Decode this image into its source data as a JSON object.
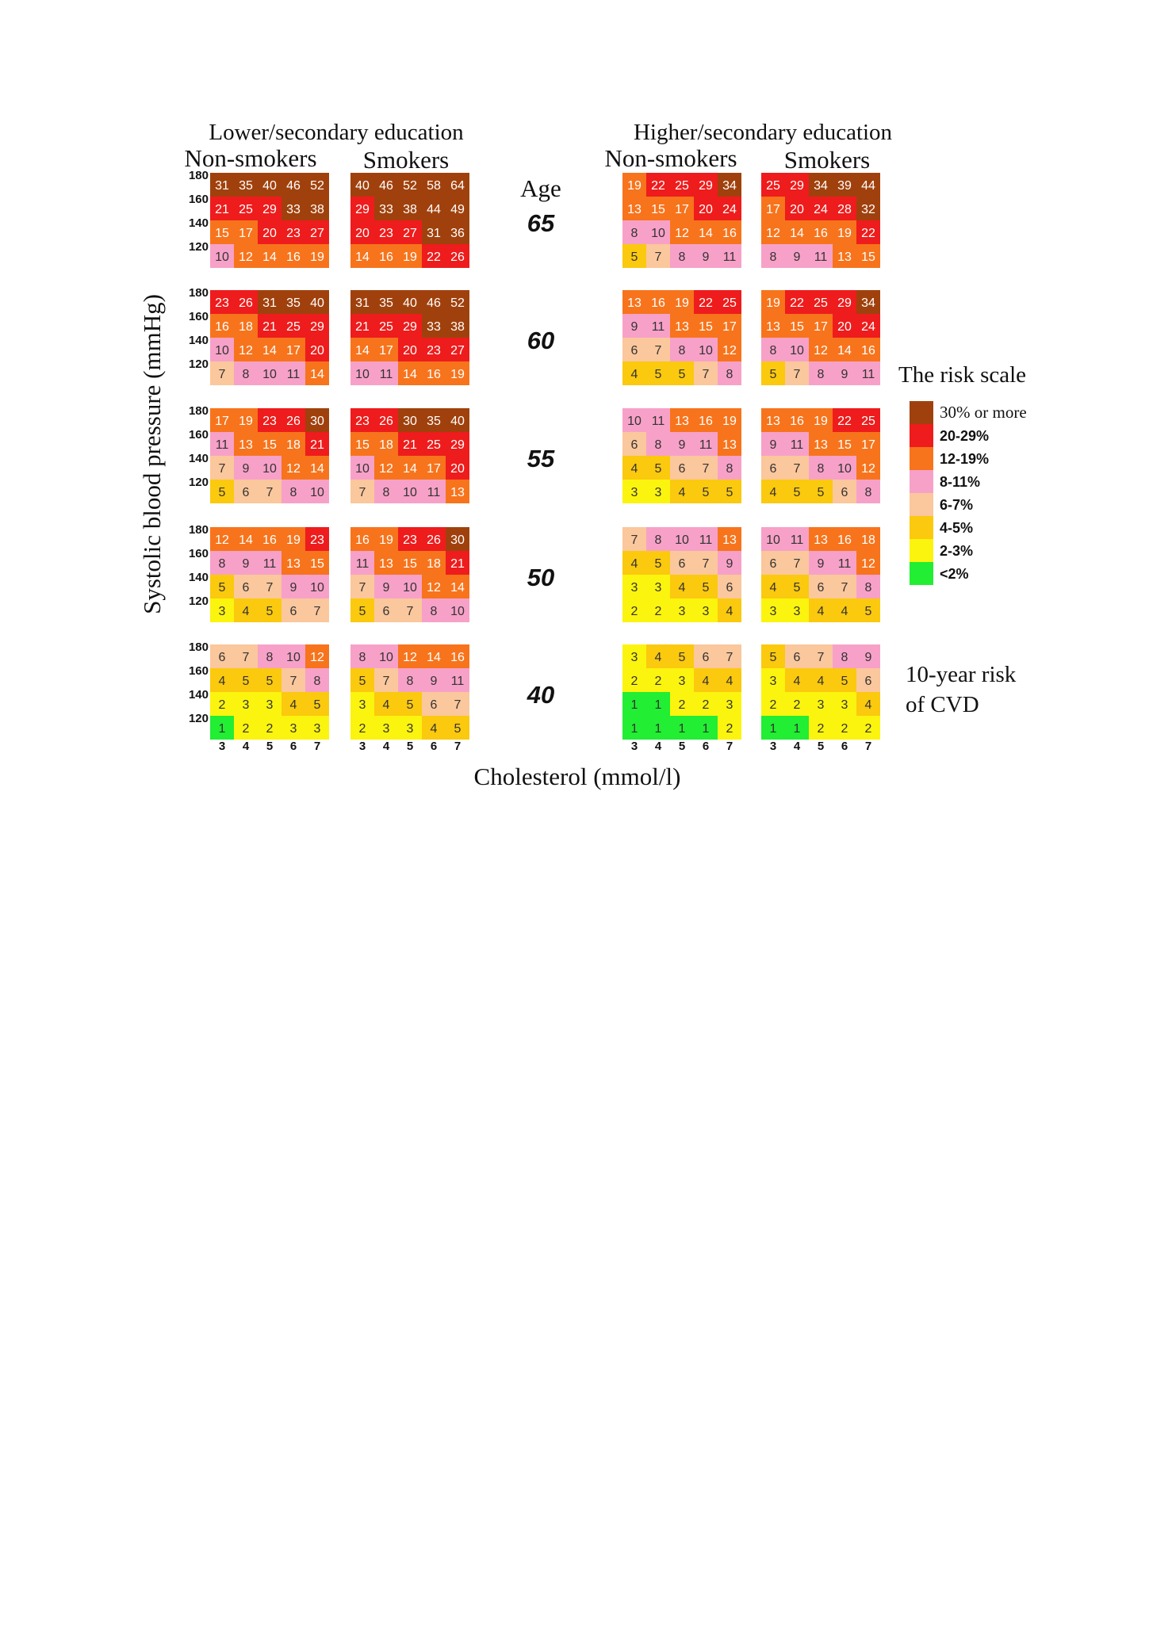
{
  "chart_data": {
    "type": "heatmap",
    "titles": {
      "lower_group": "Lower/secondary education",
      "higher_group": "Higher/secondary education",
      "non_smokers": "Non-smokers",
      "smokers": "Smokers",
      "age_label": "Age",
      "ylabel": "Systolic blood pressure (mmHg)",
      "xlabel": "Cholesterol (mmol/l)",
      "risk_scale_title": "The risk scale",
      "risk_note_line1": "10-year risk",
      "risk_note_line2": "of CVD"
    },
    "ages": [
      "65",
      "60",
      "55",
      "50",
      "40"
    ],
    "sbp_levels": [
      "180",
      "160",
      "140",
      "120"
    ],
    "cholesterol_levels": [
      "3",
      "4",
      "5",
      "6",
      "7"
    ],
    "legend": [
      {
        "label": "30% or more",
        "color": "#a0410d"
      },
      {
        "label": "20-29%",
        "color": "#ee1c1c"
      },
      {
        "label": "12-19%",
        "color": "#f7741c"
      },
      {
        "label": "8-11%",
        "color": "#f7a1c8"
      },
      {
        "label": "6-7%",
        "color": "#fbc79c"
      },
      {
        "label": "4-5%",
        "color": "#fbc90e"
      },
      {
        "label": "2-3%",
        "color": "#fbf40e"
      },
      {
        "label": "<2%",
        "color": "#22ee33"
      }
    ],
    "panels": [
      {
        "group": "lower",
        "smoking": "non-smokers",
        "age": "65",
        "values": [
          [
            31,
            35,
            40,
            46,
            52
          ],
          [
            21,
            25,
            29,
            33,
            38
          ],
          [
            15,
            17,
            20,
            23,
            27
          ],
          [
            10,
            12,
            14,
            16,
            19
          ]
        ]
      },
      {
        "group": "lower",
        "smoking": "smokers",
        "age": "65",
        "values": [
          [
            40,
            46,
            52,
            58,
            64
          ],
          [
            29,
            33,
            38,
            44,
            49
          ],
          [
            20,
            23,
            27,
            31,
            36
          ],
          [
            14,
            16,
            19,
            22,
            26
          ]
        ]
      },
      {
        "group": "higher",
        "smoking": "non-smokers",
        "age": "65",
        "values": [
          [
            19,
            22,
            25,
            29,
            34
          ],
          [
            13,
            15,
            17,
            20,
            24
          ],
          [
            8,
            10,
            12,
            14,
            16
          ],
          [
            5,
            7,
            8,
            9,
            11
          ]
        ]
      },
      {
        "group": "higher",
        "smoking": "smokers",
        "age": "65",
        "values": [
          [
            25,
            29,
            34,
            39,
            44
          ],
          [
            17,
            20,
            24,
            28,
            32
          ],
          [
            12,
            14,
            16,
            19,
            22
          ],
          [
            8,
            9,
            11,
            13,
            15
          ]
        ]
      },
      {
        "group": "lower",
        "smoking": "non-smokers",
        "age": "60",
        "values": [
          [
            23,
            26,
            31,
            35,
            40
          ],
          [
            16,
            18,
            21,
            25,
            29
          ],
          [
            10,
            12,
            14,
            17,
            20
          ],
          [
            7,
            8,
            10,
            11,
            14
          ]
        ]
      },
      {
        "group": "lower",
        "smoking": "smokers",
        "age": "60",
        "values": [
          [
            31,
            35,
            40,
            46,
            52
          ],
          [
            21,
            25,
            29,
            33,
            38
          ],
          [
            14,
            17,
            20,
            23,
            27
          ],
          [
            10,
            11,
            14,
            16,
            19
          ]
        ]
      },
      {
        "group": "higher",
        "smoking": "non-smokers",
        "age": "60",
        "values": [
          [
            13,
            16,
            19,
            22,
            25
          ],
          [
            9,
            11,
            13,
            15,
            17
          ],
          [
            6,
            7,
            8,
            10,
            12
          ],
          [
            4,
            5,
            5,
            7,
            8
          ]
        ]
      },
      {
        "group": "higher",
        "smoking": "smokers",
        "age": "60",
        "values": [
          [
            19,
            22,
            25,
            29,
            34
          ],
          [
            13,
            15,
            17,
            20,
            24
          ],
          [
            8,
            10,
            12,
            14,
            16
          ],
          [
            5,
            7,
            8,
            9,
            11
          ]
        ]
      },
      {
        "group": "lower",
        "smoking": "non-smokers",
        "age": "55",
        "values": [
          [
            17,
            19,
            23,
            26,
            30
          ],
          [
            11,
            13,
            15,
            18,
            21
          ],
          [
            7,
            9,
            10,
            12,
            14
          ],
          [
            5,
            6,
            7,
            8,
            10
          ]
        ]
      },
      {
        "group": "lower",
        "smoking": "smokers",
        "age": "55",
        "values": [
          [
            23,
            26,
            30,
            35,
            40
          ],
          [
            15,
            18,
            21,
            25,
            29
          ],
          [
            10,
            12,
            14,
            17,
            20
          ],
          [
            7,
            8,
            10,
            11,
            13
          ]
        ]
      },
      {
        "group": "higher",
        "smoking": "non-smokers",
        "age": "55",
        "values": [
          [
            10,
            11,
            13,
            16,
            19
          ],
          [
            6,
            8,
            9,
            11,
            13
          ],
          [
            4,
            5,
            6,
            7,
            8
          ],
          [
            3,
            3,
            4,
            5,
            5
          ]
        ]
      },
      {
        "group": "higher",
        "smoking": "smokers",
        "age": "55",
        "values": [
          [
            13,
            16,
            19,
            22,
            25
          ],
          [
            9,
            11,
            13,
            15,
            17
          ],
          [
            6,
            7,
            8,
            10,
            12
          ],
          [
            4,
            5,
            5,
            6,
            8
          ]
        ]
      },
      {
        "group": "lower",
        "smoking": "non-smokers",
        "age": "50",
        "values": [
          [
            12,
            14,
            16,
            19,
            23
          ],
          [
            8,
            9,
            11,
            13,
            15
          ],
          [
            5,
            6,
            7,
            9,
            10
          ],
          [
            3,
            4,
            5,
            6,
            7
          ]
        ]
      },
      {
        "group": "lower",
        "smoking": "smokers",
        "age": "50",
        "values": [
          [
            16,
            19,
            23,
            26,
            30
          ],
          [
            11,
            13,
            15,
            18,
            21
          ],
          [
            7,
            9,
            10,
            12,
            14
          ],
          [
            5,
            6,
            7,
            8,
            10
          ]
        ]
      },
      {
        "group": "higher",
        "smoking": "non-smokers",
        "age": "50",
        "values": [
          [
            7,
            8,
            10,
            11,
            13
          ],
          [
            4,
            5,
            6,
            7,
            9
          ],
          [
            3,
            3,
            4,
            5,
            6
          ],
          [
            2,
            2,
            3,
            3,
            4
          ]
        ]
      },
      {
        "group": "higher",
        "smoking": "smokers",
        "age": "50",
        "values": [
          [
            10,
            11,
            13,
            16,
            18
          ],
          [
            6,
            7,
            9,
            11,
            12
          ],
          [
            4,
            5,
            6,
            7,
            8
          ],
          [
            3,
            3,
            4,
            4,
            5
          ]
        ]
      },
      {
        "group": "lower",
        "smoking": "non-smokers",
        "age": "40",
        "values": [
          [
            6,
            7,
            8,
            10,
            12
          ],
          [
            4,
            5,
            5,
            7,
            8
          ],
          [
            2,
            3,
            3,
            4,
            5
          ],
          [
            1,
            2,
            2,
            3,
            3
          ]
        ]
      },
      {
        "group": "lower",
        "smoking": "smokers",
        "age": "40",
        "values": [
          [
            8,
            10,
            12,
            14,
            16
          ],
          [
            5,
            7,
            8,
            9,
            11
          ],
          [
            3,
            4,
            5,
            6,
            7
          ],
          [
            2,
            3,
            3,
            4,
            5
          ]
        ]
      },
      {
        "group": "higher",
        "smoking": "non-smokers",
        "age": "40",
        "values": [
          [
            3,
            4,
            5,
            6,
            7
          ],
          [
            2,
            2,
            3,
            4,
            4
          ],
          [
            1,
            1,
            2,
            2,
            3
          ],
          [
            1,
            1,
            1,
            1,
            2
          ]
        ]
      },
      {
        "group": "higher",
        "smoking": "smokers",
        "age": "40",
        "values": [
          [
            5,
            6,
            7,
            8,
            9
          ],
          [
            3,
            4,
            4,
            5,
            6
          ],
          [
            2,
            2,
            3,
            3,
            4
          ],
          [
            1,
            1,
            2,
            2,
            2
          ]
        ]
      }
    ]
  }
}
